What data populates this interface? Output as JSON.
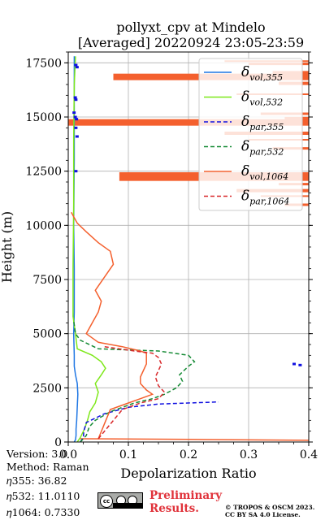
{
  "chart_data": {
    "type": "line",
    "title": "pollyxt_cpv at Mindelo",
    "subtitle": "[Averaged] 20220924 23:05-23:59",
    "xlabel": "Depolarization Ratio",
    "ylabel": "Height (m)",
    "xlim": [
      0.0,
      0.4
    ],
    "ylim": [
      0,
      18000
    ],
    "xticks": [
      "0.0",
      "0.1",
      "0.2",
      "0.3",
      "0.4"
    ],
    "yticks": [
      "0",
      "2500",
      "5000",
      "7500",
      "10000",
      "12500",
      "15000",
      "17500"
    ],
    "grid": true,
    "legend_position": "upper-right",
    "series": [
      {
        "name": "δvol,355",
        "color": "#1f77e4",
        "style": "solid",
        "x": [
          0.01,
          0.012,
          0.013,
          0.013,
          0.014,
          0.015,
          0.016,
          0.015,
          0.012,
          0.01,
          0.01,
          0.009,
          0.01,
          0.01,
          0.009,
          0.01,
          0.01
        ],
        "y": [
          0,
          100,
          300,
          600,
          1000,
          1600,
          2200,
          2700,
          3100,
          3500,
          4000,
          5000,
          6000,
          8000,
          10000,
          13000,
          17800
        ]
      },
      {
        "name": "δvol,532",
        "color": "#7ee81a",
        "style": "solid",
        "x": [
          0.015,
          0.02,
          0.027,
          0.032,
          0.036,
          0.045,
          0.05,
          0.045,
          0.055,
          0.062,
          0.055,
          0.04,
          0.015,
          0.012,
          0.008,
          0.008,
          0.009,
          0.009,
          0.01,
          0.012
        ],
        "y": [
          0,
          200,
          600,
          1000,
          1400,
          1800,
          2300,
          2700,
          3100,
          3400,
          3700,
          4000,
          4300,
          5000,
          5800,
          8000,
          11000,
          14000,
          16500,
          17800
        ]
      },
      {
        "name": "δpar,355",
        "color": "#1010e0",
        "style": "dashed",
        "x": [
          0.02,
          0.025,
          0.026,
          0.03,
          0.06,
          0.1,
          0.15,
          0.25
        ],
        "y": [
          0,
          200,
          500,
          900,
          1300,
          1600,
          1750,
          1850
        ]
      },
      {
        "name": "δpar,532",
        "color": "#148a34",
        "style": "dashed",
        "x": [
          0.02,
          0.03,
          0.035,
          0.045,
          0.07,
          0.11,
          0.14,
          0.16,
          0.18,
          0.19,
          0.185,
          0.2,
          0.21,
          0.2,
          0.15,
          0.05,
          0.02,
          0.012,
          0.009
        ],
        "y": [
          0,
          300,
          700,
          1000,
          1400,
          1800,
          2000,
          2200,
          2500,
          2800,
          3100,
          3500,
          3700,
          4000,
          4200,
          4300,
          4700,
          5000,
          5600
        ]
      },
      {
        "name": "δvol,1064",
        "color": "#f4602e",
        "style": "solid",
        "x": [
          0.05,
          0.07,
          0.1,
          0.12,
          0.14,
          0.13,
          0.12,
          0.12,
          0.125,
          0.13,
          0.13,
          0.13,
          0.12,
          0.09,
          0.05,
          0.03,
          0.04,
          0.05,
          0.055,
          0.045,
          0.06,
          0.075,
          0.07,
          0.05,
          0.03,
          0.015,
          0.005
        ],
        "y": [
          150,
          1500,
          1800,
          2000,
          2200,
          2400,
          2700,
          3000,
          3300,
          3600,
          3900,
          4100,
          4200,
          4400,
          4600,
          5000,
          5500,
          6000,
          6500,
          7000,
          7600,
          8200,
          8800,
          9200,
          9700,
          10100,
          10600
        ]
      },
      {
        "name": "δpar,1064",
        "color": "#d8282a",
        "style": "dashed",
        "x": [
          0.05,
          0.09,
          0.12,
          0.15,
          0.16,
          0.15,
          0.145,
          0.15,
          0.155,
          0.15,
          0.14,
          0.11,
          0.06
        ],
        "y": [
          150,
          1500,
          1800,
          2000,
          2300,
          2600,
          3000,
          3300,
          3600,
          3900,
          4100,
          4200,
          4400
        ]
      }
    ]
  },
  "footer": {
    "version": "Version: 3.0",
    "method": "Method: Raman",
    "eta355": "𝜂355:  36.82",
    "eta532": "𝜂532: 11.0110",
    "eta1064": "𝜂1064: 0.7330",
    "prelim_line1": "Preliminary",
    "prelim_line2": "Results.",
    "copyright_line1": "© TROPOS & OSCM 2023.",
    "copyright_line2": "CC BY SA 4.0 License.",
    "license_badge": "cc"
  }
}
